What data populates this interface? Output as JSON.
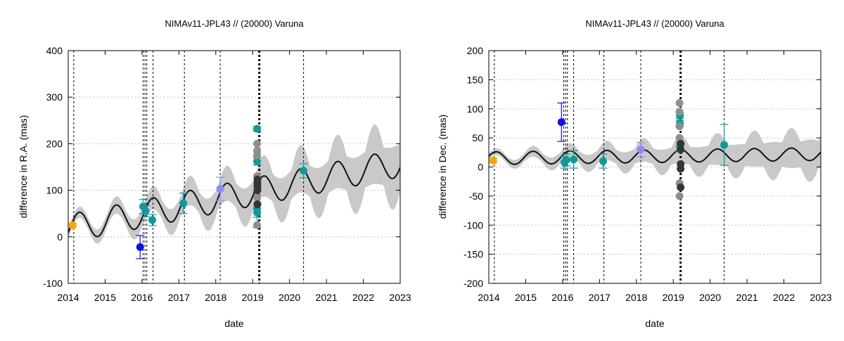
{
  "chart_data": [
    {
      "type": "scatter",
      "title": "NIMAv11-JPL43 // (20000) Varuna",
      "xlabel": "date",
      "ylabel": "difference in R.A. (mas)",
      "xlim": [
        2014,
        2023
      ],
      "ylim": [
        -100,
        400
      ],
      "xticks": [
        "2014",
        "2015",
        "2016",
        "2017",
        "2018",
        "2019",
        "2020",
        "2021",
        "2022",
        "2023"
      ],
      "yticks": [
        "-100",
        "0",
        "100",
        "200",
        "300",
        "400"
      ],
      "grid": true,
      "model": {
        "name": "model prediction",
        "offset": 18,
        "trend": 15.6,
        "amp": 30,
        "phase": -0.05,
        "unc_base": 10,
        "unc_growth": 6.5
      },
      "event_lines": [
        {
          "x": 2014.15,
          "style": "dotted"
        },
        {
          "x": 2016.03,
          "style": "dotted"
        },
        {
          "x": 2016.08,
          "style": "dotted"
        },
        {
          "x": 2016.13,
          "style": "dotted"
        },
        {
          "x": 2016.3,
          "style": "dotted"
        },
        {
          "x": 2017.15,
          "style": "dotted"
        },
        {
          "x": 2018.12,
          "style": "dotted"
        },
        {
          "x": 2019.18,
          "style": "thick-dotted"
        },
        {
          "x": 2020.38,
          "style": "dotted"
        }
      ],
      "series": [
        {
          "name": "orange",
          "color": "#F5A70A",
          "points": [
            {
              "x": 2014.12,
              "y": 25,
              "err": 5
            }
          ]
        },
        {
          "name": "blue",
          "color": "#1010E6",
          "points": [
            {
              "x": 2015.95,
              "y": -22,
              "err": 25
            }
          ]
        },
        {
          "name": "light-blue",
          "color": "#8C8CF5",
          "points": [
            {
              "x": 2018.12,
              "y": 103,
              "err": 25
            }
          ]
        },
        {
          "name": "teal",
          "color": "#11999A",
          "points": [
            {
              "x": 2016.03,
              "y": 65,
              "err": 15
            },
            {
              "x": 2016.1,
              "y": 55,
              "err": 12
            },
            {
              "x": 2016.28,
              "y": 36,
              "err": 12
            },
            {
              "x": 2017.12,
              "y": 72,
              "err": 22
            },
            {
              "x": 2019.12,
              "y": 232,
              "err": 5
            },
            {
              "x": 2019.12,
              "y": 162,
              "err": 8
            },
            {
              "x": 2019.12,
              "y": 60,
              "err": 40
            },
            {
              "x": 2019.12,
              "y": 52,
              "err": 10
            },
            {
              "x": 2020.38,
              "y": 142,
              "err": 15
            }
          ]
        },
        {
          "name": "gray",
          "color": "#8E8E8E",
          "points": [
            {
              "x": 2019.12,
              "y": 200
            },
            {
              "x": 2019.12,
              "y": 185
            },
            {
              "x": 2019.12,
              "y": 175
            },
            {
              "x": 2019.12,
              "y": 130
            },
            {
              "x": 2019.12,
              "y": 85
            },
            {
              "x": 2019.12,
              "y": 25
            }
          ]
        },
        {
          "name": "dark",
          "color": "#353535",
          "points": [
            {
              "x": 2019.13,
              "y": 123
            },
            {
              "x": 2019.13,
              "y": 115
            },
            {
              "x": 2019.13,
              "y": 108
            },
            {
              "x": 2019.13,
              "y": 100
            },
            {
              "x": 2019.13,
              "y": 70
            }
          ]
        }
      ]
    },
    {
      "type": "scatter",
      "title": "NIMAv11-JPL43 // (20000) Varuna",
      "xlabel": "date",
      "ylabel": "difference in Dec. (mas)",
      "xlim": [
        2014,
        2023
      ],
      "ylim": [
        -200,
        200
      ],
      "xticks": [
        "2014",
        "2015",
        "2016",
        "2017",
        "2018",
        "2019",
        "2020",
        "2021",
        "2022",
        "2023"
      ],
      "yticks": [
        "-200",
        "-150",
        "-100",
        "-50",
        "0",
        "50",
        "100",
        "150",
        "200"
      ],
      "grid": true,
      "model": {
        "name": "model prediction",
        "offset": 15,
        "trend": 0.8,
        "amp": 11,
        "phase": 0.05,
        "unc_base": 5,
        "unc_growth": 3.6
      },
      "event_lines": [
        {
          "x": 2014.15,
          "style": "dotted"
        },
        {
          "x": 2016.03,
          "style": "dotted"
        },
        {
          "x": 2016.08,
          "style": "dotted"
        },
        {
          "x": 2016.13,
          "style": "dotted"
        },
        {
          "x": 2016.3,
          "style": "dotted"
        },
        {
          "x": 2017.12,
          "style": "dotted"
        },
        {
          "x": 2018.12,
          "style": "dotted"
        },
        {
          "x": 2019.2,
          "style": "thick-dotted"
        },
        {
          "x": 2020.38,
          "style": "dotted"
        }
      ],
      "series": [
        {
          "name": "orange",
          "color": "#F5A70A",
          "points": [
            {
              "x": 2014.12,
              "y": 11,
              "err": 4
            }
          ]
        },
        {
          "name": "blue",
          "color": "#1010E6",
          "points": [
            {
              "x": 2015.97,
              "y": 77,
              "err": 33
            }
          ]
        },
        {
          "name": "light-blue",
          "color": "#8C8CF5",
          "points": [
            {
              "x": 2018.12,
              "y": 30,
              "err": 12
            }
          ]
        },
        {
          "name": "teal",
          "color": "#11999A",
          "points": [
            {
              "x": 2016.05,
              "y": 8,
              "err": 10
            },
            {
              "x": 2016.1,
              "y": 12,
              "err": 10
            },
            {
              "x": 2016.3,
              "y": 13,
              "err": 15
            },
            {
              "x": 2017.1,
              "y": 10,
              "err": 12
            },
            {
              "x": 2019.18,
              "y": 88,
              "err": 5
            },
            {
              "x": 2019.18,
              "y": 75,
              "err": 5
            },
            {
              "x": 2019.18,
              "y": 35,
              "err": 8
            },
            {
              "x": 2020.38,
              "y": 38,
              "err": 35
            }
          ]
        },
        {
          "name": "gray",
          "color": "#8E8E8E",
          "points": [
            {
              "x": 2019.17,
              "y": 110
            },
            {
              "x": 2019.17,
              "y": 95
            },
            {
              "x": 2019.17,
              "y": 70
            },
            {
              "x": 2019.17,
              "y": 50
            },
            {
              "x": 2019.17,
              "y": -28
            },
            {
              "x": 2019.17,
              "y": -50
            }
          ]
        },
        {
          "name": "dark",
          "color": "#353535",
          "points": [
            {
              "x": 2019.2,
              "y": 40
            },
            {
              "x": 2019.2,
              "y": 30
            },
            {
              "x": 2019.2,
              "y": 5
            },
            {
              "x": 2019.2,
              "y": -3
            },
            {
              "x": 2019.2,
              "y": -35
            }
          ]
        }
      ]
    }
  ]
}
